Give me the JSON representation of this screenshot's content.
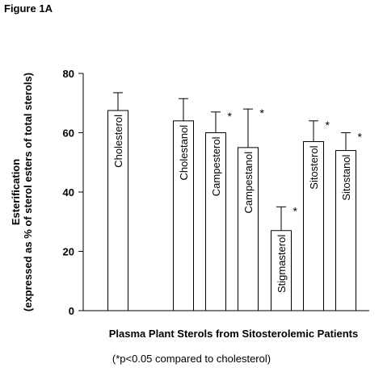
{
  "figure_label": "Figure 1A",
  "footnote": "(*p<0.05 compared to cholesterol)",
  "chart_data": {
    "type": "bar",
    "categories": [
      "Cholesterol",
      "Cholestanol",
      "Campesterol",
      "Campestanol",
      "Stigmasterol",
      "Sitosterol",
      "Sitostanol"
    ],
    "values": [
      67.5,
      64,
      60,
      55,
      27,
      57,
      54
    ],
    "error_upper": [
      73.5,
      71.5,
      67,
      68,
      35,
      64,
      60
    ],
    "significant": [
      false,
      false,
      true,
      true,
      true,
      true,
      true
    ],
    "significance_marker": "*",
    "xlabel": "Plasma Plant Sterols from Sitosterolemic Patients",
    "ylabel": "Esterification",
    "ylabel_sub": "(expressed as % of sterol esters of total sterols)",
    "ylim": [
      0,
      80
    ],
    "yticks": [
      0,
      20,
      40,
      60,
      80
    ],
    "grid": false,
    "bar_color": "#ffffff",
    "stroke_color": "#000000"
  }
}
